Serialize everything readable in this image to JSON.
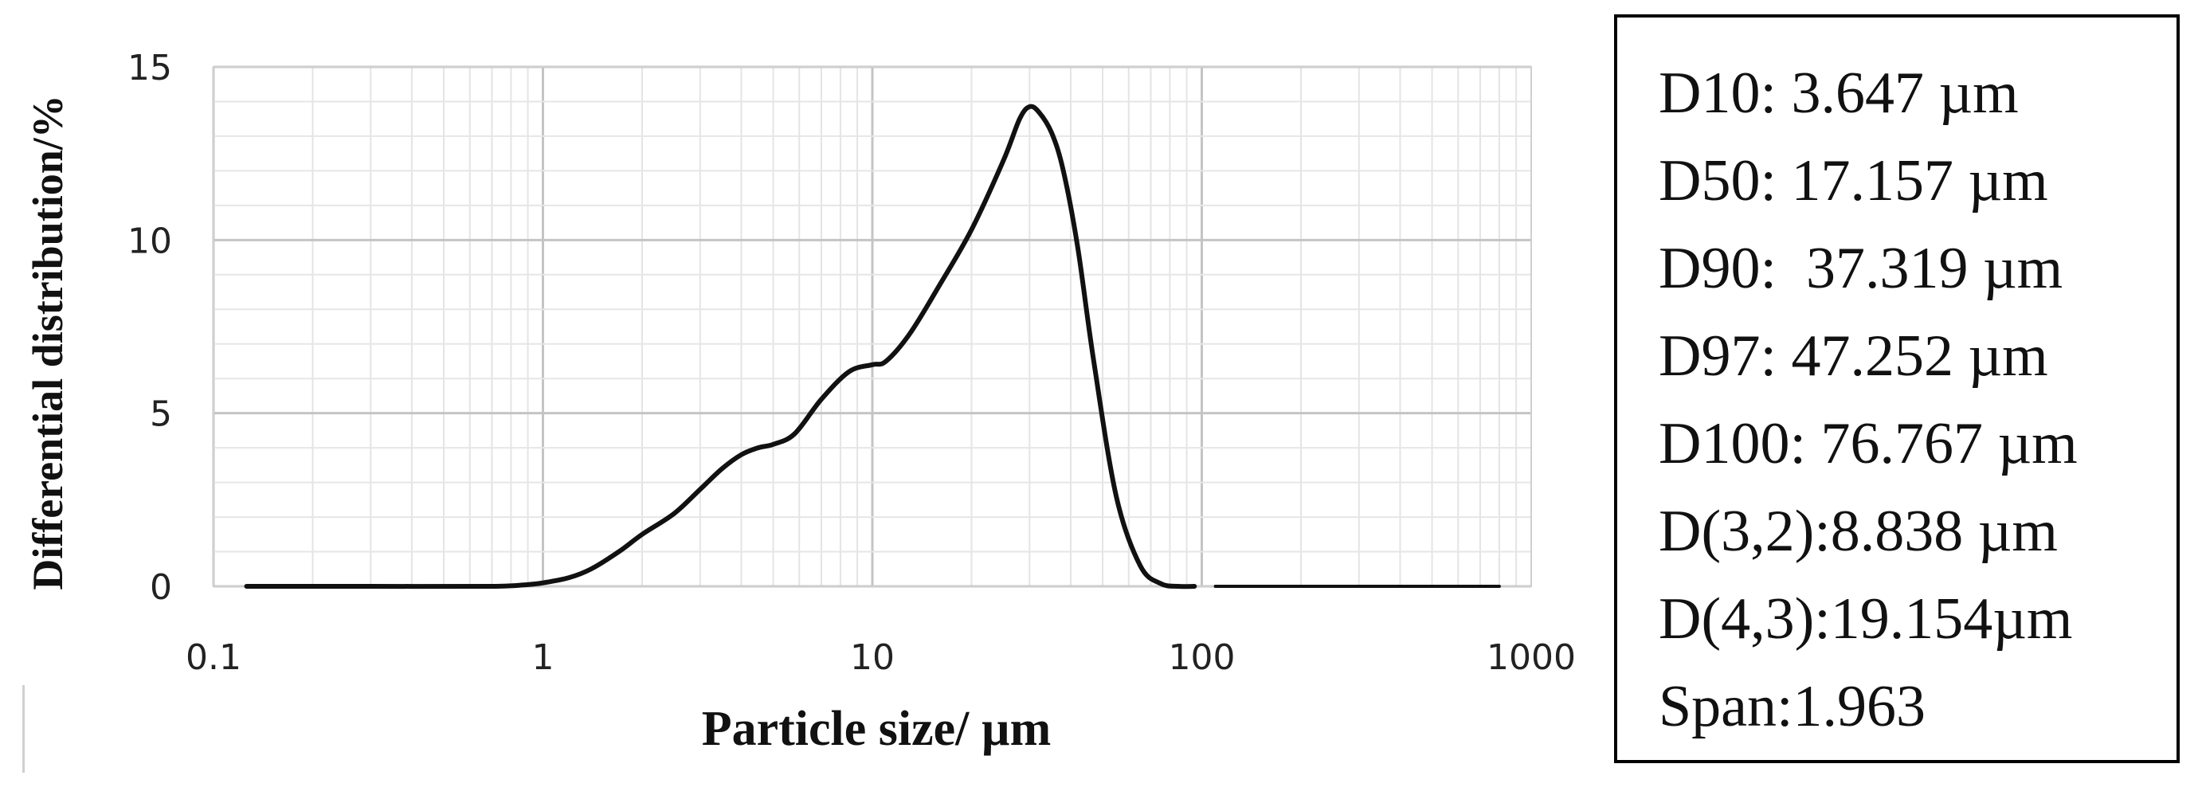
{
  "chart_data": {
    "type": "line",
    "title": "",
    "xlabel": "Particle size/ µm",
    "ylabel": "Differential distribution/%",
    "x_scale": "log",
    "xlim": [
      0.1,
      1000
    ],
    "ylim": [
      0,
      15
    ],
    "x_ticks": [
      "0.1",
      "1",
      "10",
      "100",
      "1000"
    ],
    "y_ticks": [
      "0",
      "5",
      "10",
      "15"
    ],
    "grid": true,
    "series": [
      {
        "color": "#111111",
        "x": [
          0.126,
          0.3,
          0.7,
          0.9,
          1.0,
          1.2,
          1.4,
          1.7,
          2.0,
          2.5,
          3.0,
          3.5,
          4.0,
          4.5,
          5.0,
          5.8,
          7.0,
          8.5,
          10.0,
          11.0,
          13.0,
          16.0,
          20.0,
          25.0,
          28.0,
          30.0,
          32.0,
          35.0,
          38.0,
          42.0,
          47.0,
          55.0,
          65.0,
          75.0,
          85.0,
          95.0
        ],
        "y": [
          0.0,
          0.0,
          0.0,
          0.05,
          0.1,
          0.25,
          0.5,
          1.0,
          1.5,
          2.1,
          2.8,
          3.4,
          3.8,
          4.0,
          4.1,
          4.4,
          5.4,
          6.2,
          6.4,
          6.5,
          7.3,
          8.7,
          10.3,
          12.3,
          13.5,
          13.85,
          13.7,
          13.1,
          12.0,
          9.8,
          6.5,
          2.6,
          0.6,
          0.08,
          0.0,
          0.0
        ]
      },
      {
        "color": "#111111",
        "x": [
          110,
          800
        ],
        "y": [
          0.0,
          0.0
        ]
      }
    ]
  },
  "stats": {
    "lines": [
      "D10: 3.647 µm",
      "D50: 17.157 µm",
      "D90:  37.319 µm",
      "D97: 47.252 µm",
      "D100: 76.767 µm",
      "D(3,2):8.838 µm",
      "D(4,3):19.154µm",
      "Span:1.963"
    ]
  }
}
